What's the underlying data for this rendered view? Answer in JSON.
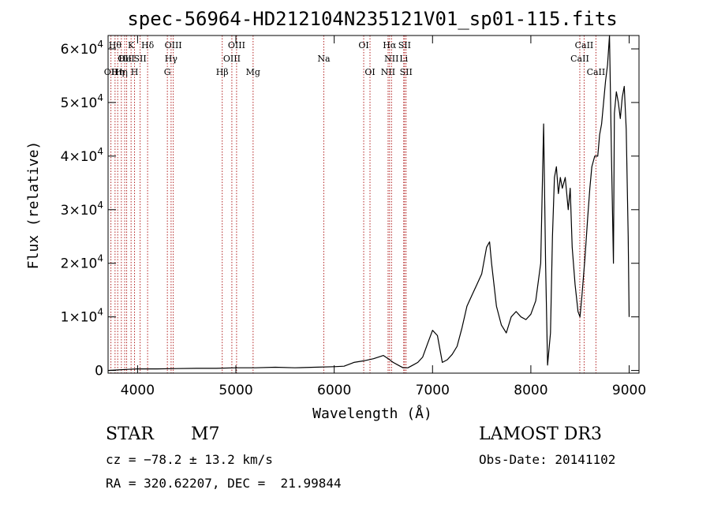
{
  "chart_data": {
    "type": "line",
    "title": "spec-56964-HD212104N235121V01_sp01-115.fits",
    "xlabel": "Wavelength (Å)",
    "ylabel": "Flux (relative)",
    "xlim": [
      3700,
      9100
    ],
    "ylim": [
      -500,
      62500
    ],
    "x_ticks": [
      4000,
      5000,
      6000,
      7000,
      8000,
      9000
    ],
    "y_ticks": [
      0,
      10000,
      20000,
      30000,
      40000,
      50000,
      60000
    ],
    "y_tick_labels": [
      {
        "mantissa": "0",
        "exponent": ""
      },
      {
        "mantissa": "1×10",
        "exponent": "4"
      },
      {
        "mantissa": "2×10",
        "exponent": "4"
      },
      {
        "mantissa": "3×10",
        "exponent": "4"
      },
      {
        "mantissa": "4×10",
        "exponent": "4"
      },
      {
        "mantissa": "5×10",
        "exponent": "4"
      },
      {
        "mantissa": "6×10",
        "exponent": "4"
      }
    ],
    "grid": false,
    "series": [
      {
        "color": "#000000",
        "x": [
          3700,
          3800,
          3900,
          4000,
          4200,
          4400,
          4600,
          4800,
          5000,
          5200,
          5400,
          5600,
          5800,
          6000,
          6100,
          6200,
          6300,
          6400,
          6500,
          6550,
          6600,
          6650,
          6700,
          6750,
          6800,
          6850,
          6900,
          6950,
          7000,
          7050,
          7100,
          7150,
          7200,
          7250,
          7300,
          7350,
          7400,
          7450,
          7500,
          7550,
          7580,
          7600,
          7650,
          7700,
          7750,
          7800,
          7850,
          7900,
          7950,
          8000,
          8050,
          8100,
          8130,
          8150,
          8170,
          8200,
          8220,
          8240,
          8260,
          8280,
          8300,
          8320,
          8350,
          8380,
          8400,
          8420,
          8450,
          8480,
          8500,
          8520,
          8550,
          8580,
          8600,
          8620,
          8650,
          8680,
          8700,
          8720,
          8740,
          8760,
          8780,
          8800,
          8820,
          8840,
          8850,
          8870,
          8890,
          8910,
          8930,
          8950,
          8970,
          8990,
          9000
        ],
        "y": [
          0,
          100,
          200,
          300,
          300,
          350,
          400,
          400,
          500,
          500,
          600,
          500,
          600,
          700,
          800,
          1500,
          1800,
          2200,
          2800,
          2200,
          1500,
          1000,
          500,
          500,
          1000,
          1500,
          2500,
          5000,
          7500,
          6500,
          1500,
          2000,
          3000,
          4500,
          8000,
          12000,
          14000,
          16000,
          18000,
          23000,
          24000,
          20000,
          12000,
          8500,
          7000,
          10000,
          11000,
          10000,
          9500,
          10500,
          13000,
          20000,
          46000,
          20000,
          1000,
          7000,
          25000,
          36000,
          38000,
          33000,
          36000,
          34000,
          36000,
          30000,
          34000,
          23000,
          16000,
          11000,
          10000,
          14000,
          21000,
          29000,
          34000,
          38000,
          40000,
          40000,
          44000,
          46000,
          50000,
          54000,
          57000,
          62500,
          40000,
          20000,
          48000,
          52000,
          50000,
          47000,
          51000,
          53000,
          45000,
          25000,
          10000
        ]
      }
    ],
    "lines": [
      {
        "x": 3729,
        "labels": [
          {
            "text": "OII",
            "row": 3
          }
        ]
      },
      {
        "x": 3771,
        "labels": [
          {
            "text": "Hθ",
            "row": 1
          }
        ]
      },
      {
        "x": 3798,
        "labels": [
          {
            "text": "Hη",
            "row": 3
          }
        ]
      },
      {
        "x": 3835,
        "labels": [
          {
            "text": "Hη",
            "row": 3
          }
        ]
      },
      {
        "x": 3869,
        "labels": [
          {
            "text": "OII",
            "row": 2
          }
        ]
      },
      {
        "x": 3889,
        "labels": [
          {
            "text": "HeI",
            "row": 2
          }
        ]
      },
      {
        "x": 3934,
        "labels": [
          {
            "text": "K",
            "row": 1
          }
        ]
      },
      {
        "x": 3969,
        "labels": [
          {
            "text": "H",
            "row": 3
          }
        ]
      },
      {
        "x": 4026,
        "labels": [
          {
            "text": "SII",
            "row": 2
          }
        ]
      },
      {
        "x": 4102,
        "labels": [
          {
            "text": "Hδ",
            "row": 1
          }
        ]
      },
      {
        "x": 4303,
        "labels": [
          {
            "text": "G",
            "row": 3
          }
        ]
      },
      {
        "x": 4341,
        "labels": [
          {
            "text": "Hγ",
            "row": 2
          }
        ]
      },
      {
        "x": 4363,
        "labels": [
          {
            "text": "OIII",
            "row": 1
          }
        ]
      },
      {
        "x": 4861,
        "labels": [
          {
            "text": "Hβ",
            "row": 3
          }
        ]
      },
      {
        "x": 4959,
        "labels": [
          {
            "text": "OIII",
            "row": 2
          }
        ]
      },
      {
        "x": 5007,
        "labels": [
          {
            "text": "OIII",
            "row": 1
          }
        ]
      },
      {
        "x": 5175,
        "labels": [
          {
            "text": "Mg",
            "row": 3
          }
        ]
      },
      {
        "x": 5894,
        "labels": [
          {
            "text": "Na",
            "row": 2
          }
        ]
      },
      {
        "x": 6300,
        "labels": [
          {
            "text": "OI",
            "row": 1
          }
        ]
      },
      {
        "x": 6364,
        "labels": [
          {
            "text": "OI",
            "row": 3
          }
        ]
      },
      {
        "x": 6548,
        "labels": [
          {
            "text": "NII",
            "row": 3
          }
        ]
      },
      {
        "x": 6563,
        "labels": [
          {
            "text": "Hα",
            "row": 1
          }
        ]
      },
      {
        "x": 6583,
        "labels": [
          {
            "text": "NII",
            "row": 2
          }
        ]
      },
      {
        "x": 6707,
        "labels": [
          {
            "text": "Li",
            "row": 2
          }
        ]
      },
      {
        "x": 6716,
        "labels": [
          {
            "text": "SII",
            "row": 1
          }
        ]
      },
      {
        "x": 6731,
        "labels": [
          {
            "text": "SII",
            "row": 3
          }
        ]
      },
      {
        "x": 8498,
        "labels": [
          {
            "text": "CaII",
            "row": 2
          }
        ]
      },
      {
        "x": 8542,
        "labels": [
          {
            "text": "CaII",
            "row": 1
          }
        ]
      },
      {
        "x": 8662,
        "labels": [
          {
            "text": "CaII",
            "row": 3
          }
        ]
      }
    ]
  },
  "footer": {
    "object_class": "STAR",
    "subclass": "M7",
    "survey": "LAMOST DR3",
    "cz": "cz = −78.2 ± 13.2 km/s",
    "obs_date": "Obs-Date: 20141102",
    "coords": "RA = 320.62207, DEC =  21.99844"
  }
}
